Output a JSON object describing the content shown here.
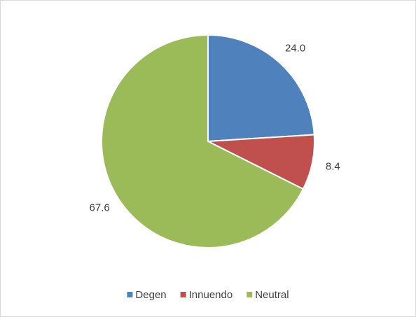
{
  "chart_data": {
    "type": "pie",
    "categories": [
      "Degen",
      "Innuendo",
      "Neutral"
    ],
    "values": [
      24.0,
      8.4,
      67.6
    ],
    "value_labels": [
      "24.0",
      "8.4",
      "67.6"
    ],
    "colors": [
      "#4f81bd",
      "#c0504d",
      "#9bbb59"
    ],
    "legend": "bottom"
  }
}
